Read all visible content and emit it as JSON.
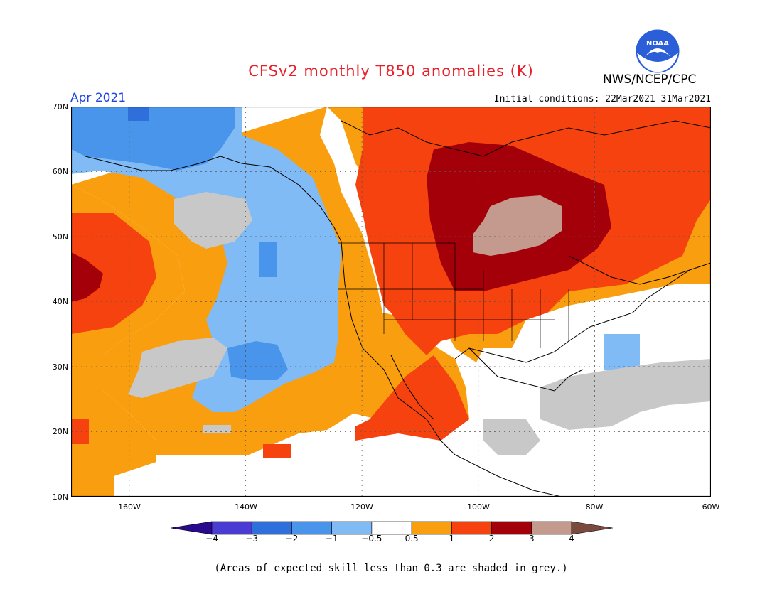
{
  "header": {
    "title": "CFSv2 monthly T850 anomalies (K)",
    "agency": "NWS/NCEP/CPC",
    "logo_text": "NOAA",
    "month": "Apr 2021",
    "initial_conditions": "Initial conditions: 22Mar2021–31Mar2021"
  },
  "map": {
    "projection": "lat-lon",
    "lon_range": [
      -170,
      -60
    ],
    "lat_range": [
      10,
      70
    ],
    "gridlines": "dotted",
    "lat_ticks": [
      "70N",
      "60N",
      "50N",
      "40N",
      "30N",
      "20N",
      "10N"
    ],
    "lon_ticks": [
      "160W",
      "140W",
      "120W",
      "100W",
      "80W",
      "60W"
    ]
  },
  "colorbar": {
    "labels": [
      "−4",
      "−3",
      "−2",
      "−1",
      "−0.5",
      "0.5",
      "1",
      "2",
      "3",
      "4"
    ],
    "colors": [
      "#2a0a8c",
      "#4a3bd2",
      "#2f6fdc",
      "#4a95ec",
      "#80bbf5",
      "#ffffff",
      "#f99e0e",
      "#f5420f",
      "#a4000a",
      "#c49a8e",
      "#7a4a3e"
    ],
    "skill_grey": "#c8c8c8"
  },
  "footnote": "(Areas of expected skill less than 0.3 are shaded in grey.)"
}
